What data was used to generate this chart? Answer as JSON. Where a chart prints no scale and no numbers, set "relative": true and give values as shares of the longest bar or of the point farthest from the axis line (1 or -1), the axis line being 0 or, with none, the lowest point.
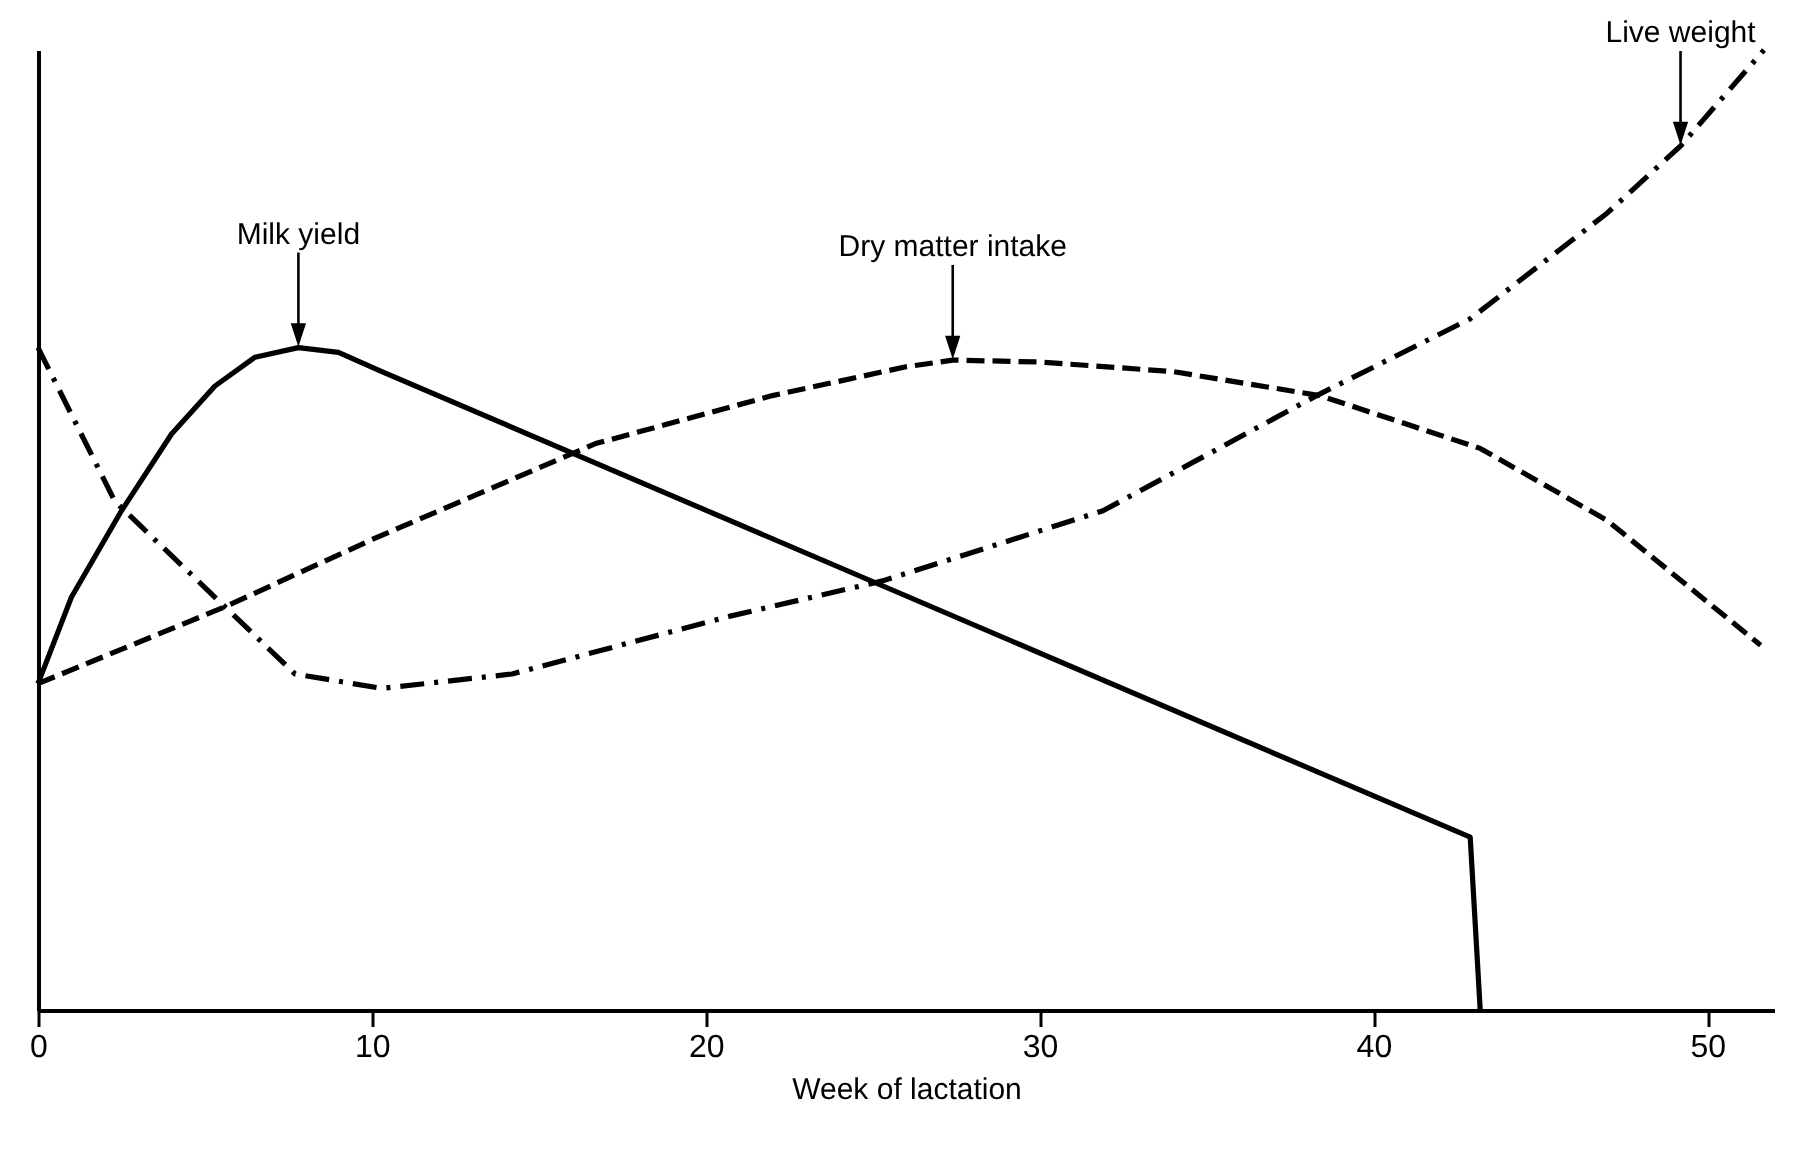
{
  "chart_data": {
    "type": "line",
    "relative": true,
    "xlabel": "Week of lactation",
    "xlim": [
      0,
      52
    ],
    "xticks": [
      0,
      10,
      20,
      30,
      40,
      50
    ],
    "grid": false,
    "legend": false,
    "marker": "none",
    "series": [
      {
        "name": "Milk yield",
        "color": "#000000",
        "line_style": "solid",
        "x": [
          0,
          1,
          2.5,
          4,
          5.3,
          6.5,
          7.8,
          9,
          10.3,
          42.9,
          43.2
        ],
        "values": [
          0.34,
          0.43,
          0.52,
          0.6,
          0.65,
          0.68,
          0.69,
          0.685,
          0.665,
          0.18,
          0
        ]
      },
      {
        "name": "Dry matter intake",
        "color": "#000000",
        "line_style": "dashed",
        "x": [
          0,
          5.6,
          10,
          16.7,
          22,
          26,
          27.4,
          30,
          34,
          38.4,
          43.2,
          47,
          51.6
        ],
        "values": [
          0.34,
          0.42,
          0.49,
          0.59,
          0.64,
          0.67,
          0.677,
          0.675,
          0.665,
          0.64,
          0.585,
          0.51,
          0.38
        ]
      },
      {
        "name": "Live weight",
        "color": "#000000",
        "line_style": "dashdot",
        "x": [
          0,
          2.3,
          5.6,
          7.7,
          10.3,
          14.2,
          20.7,
          25.3,
          31.9,
          38.3,
          42.9,
          47,
          49.2,
          51.7
        ],
        "values": [
          0.69,
          0.53,
          0.42,
          0.35,
          0.335,
          0.35,
          0.41,
          0.447,
          0.52,
          0.64,
          0.72,
          0.83,
          0.9,
          1
        ]
      }
    ]
  }
}
